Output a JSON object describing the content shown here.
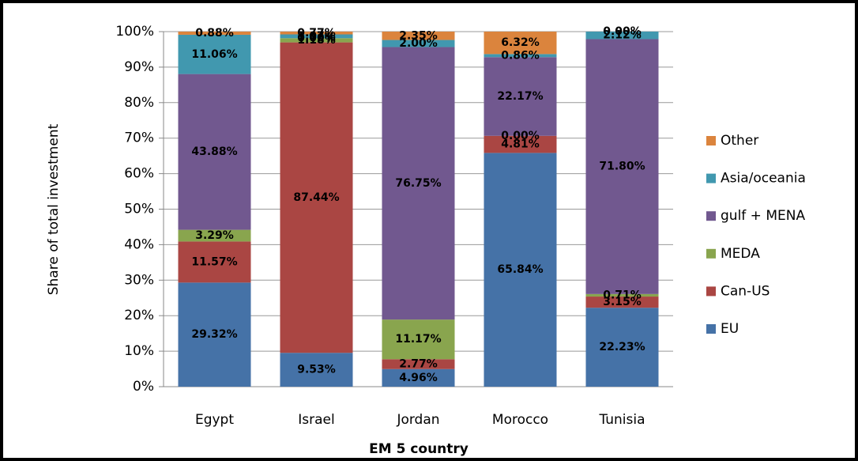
{
  "chart_data": {
    "type": "stacked_bar",
    "categories": [
      "Egypt",
      "Israel",
      "Jordan",
      "Morocco",
      "Tunisia"
    ],
    "series": [
      {
        "name": "EU",
        "color": "#4572a7",
        "values": [
          29.32,
          9.53,
          4.96,
          65.84,
          22.23
        ],
        "value_labels": [
          "29.32%",
          "9.53%",
          "4.96%",
          "65.84%",
          "22.23%"
        ]
      },
      {
        "name": "Can-US",
        "color": "#aa4643",
        "values": [
          11.57,
          87.44,
          2.77,
          4.81,
          3.15
        ],
        "value_labels": [
          "11.57%",
          "87.44%",
          "2.77%",
          "4.81%",
          "3.15%"
        ]
      },
      {
        "name": "MEDA",
        "color": "#89a54e",
        "values": [
          3.29,
          1.18,
          11.17,
          0.0,
          0.71
        ],
        "value_labels": [
          "3.29%",
          "1.18%",
          "11.17%",
          "0.00%",
          "0.71%"
        ]
      },
      {
        "name": "gulf + MENA",
        "color": "#71588f",
        "values": [
          43.88,
          0.0,
          76.75,
          22.17,
          71.8
        ],
        "value_labels": [
          "43.88%",
          "0.00%",
          "76.75%",
          "22.17%",
          "71.80%"
        ]
      },
      {
        "name": "Asia/oceania",
        "color": "#4198af",
        "values": [
          11.06,
          1.07,
          2.0,
          0.86,
          2.12
        ],
        "value_labels": [
          "11.06%",
          "1.07%",
          "2.00%",
          "0.86%",
          "2.12%"
        ]
      },
      {
        "name": "Other",
        "color": "#db843d",
        "values": [
          0.88,
          0.77,
          2.35,
          6.32,
          0.0
        ],
        "value_labels": [
          "0.88%",
          "0.77%",
          "2.35%",
          "6.32%",
          "0.00%"
        ]
      }
    ],
    "xlabel": "EM 5 country",
    "ylabel": "Share of total investment",
    "ylim": [
      0,
      100
    ],
    "yticks": [
      {
        "value": 0,
        "label": "0%"
      },
      {
        "value": 10,
        "label": "10%"
      },
      {
        "value": 20,
        "label": "20%"
      },
      {
        "value": 30,
        "label": "30%"
      },
      {
        "value": 40,
        "label": "40%"
      },
      {
        "value": 50,
        "label": "50%"
      },
      {
        "value": 60,
        "label": "60%"
      },
      {
        "value": 70,
        "label": "70%"
      },
      {
        "value": 80,
        "label": "80%"
      },
      {
        "value": 90,
        "label": "90%"
      },
      {
        "value": 100,
        "label": "100%"
      }
    ],
    "grid": true,
    "legend": "right"
  }
}
